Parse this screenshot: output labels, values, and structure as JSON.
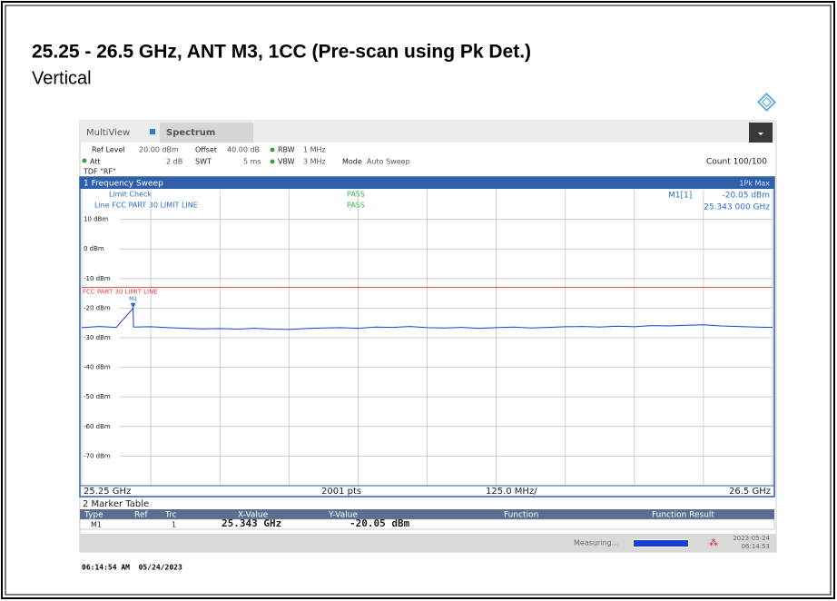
{
  "header": {
    "title": "25.25 - 26.5 GHz, ANT M3, 1CC (Pre-scan using Pk Det.)",
    "subtitle": "Vertical"
  },
  "analyzer": {
    "tabs": [
      "MultiView",
      "Spectrum"
    ],
    "settings": {
      "ref_level_label": "Ref Level",
      "ref_level": "20.00 dBm",
      "offset_label": "Offset",
      "offset": "40.00 dB",
      "rbw_label": "RBW",
      "rbw": "1 MHz",
      "att_label": "Att",
      "att": "2 dB",
      "swt_label": "SWT",
      "swt": "5 ms",
      "vbw_label": "VBW",
      "vbw": "3 MHz",
      "mode_label": "Mode",
      "mode": "Auto Sweep",
      "count": "Count 100/100",
      "tdf": "TDF \"RF\""
    },
    "window_title": "1 Frequency Sweep",
    "trace_label": "1Pk Max",
    "limit_check": "Limit Check",
    "limit_check_result": "PASS",
    "limit_line_label": "Line FCC PART 30 LIMIT LINE",
    "limit_line_result": "PASS"
  },
  "chart_data": {
    "type": "line",
    "xlim": [
      25.25,
      26.5
    ],
    "xlim_labels": [
      "25.25 GHz",
      "26.5 GHz"
    ],
    "xticks": [
      25.25,
      25.375,
      25.5,
      25.625,
      25.75,
      25.875,
      26.0,
      26.125,
      26.25,
      26.375,
      26.5
    ],
    "points_label": "2001 pts",
    "span_label": "125.0 MHz/",
    "ylim": [
      -80,
      20
    ],
    "yticks": [
      {
        "value": 10,
        "label": "10 dBm"
      },
      {
        "value": 0,
        "label": "0 dBm"
      },
      {
        "value": -10,
        "label": "-10 dBm"
      },
      {
        "value": -20,
        "label": "-20 dBm"
      },
      {
        "value": -30,
        "label": "-30 dBm"
      },
      {
        "value": -40,
        "label": "-40 dBm"
      },
      {
        "value": -50,
        "label": "-50 dBm"
      },
      {
        "value": -60,
        "label": "-60 dBm"
      },
      {
        "value": -70,
        "label": "-70 dBm"
      },
      -80
    ],
    "grid": true,
    "limit_line": {
      "name": "FCC PART 30 LIMIT LINE",
      "value": -13,
      "color": "#e04040"
    },
    "marker": {
      "name": "M1",
      "ref": "M1[1]",
      "x": 25.343,
      "y": -20.05,
      "x_label": "25.343 000 GHz",
      "y_label": "-20.05 dBm"
    },
    "series": [
      {
        "name": "1Pk Max",
        "color": "#1a3fd0",
        "x": [
          25.25,
          25.28125,
          25.3125,
          25.343,
          25.34375,
          25.375,
          25.40625,
          25.4375,
          25.46875,
          25.5,
          25.53125,
          25.5625,
          25.59375,
          25.625,
          25.65625,
          25.6875,
          25.71875,
          25.75,
          25.78125,
          25.8125,
          25.84375,
          25.875,
          25.90625,
          25.9375,
          25.96875,
          26.0,
          26.03125,
          26.0625,
          26.09375,
          26.125,
          26.15625,
          26.1875,
          26.21875,
          26.25,
          26.28125,
          26.3125,
          26.34375,
          26.375,
          26.40625,
          26.4375,
          26.46875,
          26.5
        ],
        "values": [
          -26.6,
          -26.2,
          -26.5,
          -20.05,
          -26.4,
          -26.3,
          -26.6,
          -26.8,
          -27.0,
          -26.9,
          -27.1,
          -26.8,
          -27.1,
          -27.2,
          -26.9,
          -26.7,
          -26.6,
          -26.8,
          -26.4,
          -26.5,
          -26.2,
          -26.6,
          -26.7,
          -26.5,
          -26.8,
          -26.6,
          -26.4,
          -26.7,
          -26.5,
          -26.3,
          -26.2,
          -26.4,
          -26.1,
          -26.3,
          -25.9,
          -26.0,
          -25.8,
          -25.6,
          -26.0,
          -26.2,
          -26.4,
          -26.5
        ]
      }
    ]
  },
  "marker_table": {
    "title": "2 Marker Table",
    "headers": [
      "Type",
      "Ref",
      "Trc",
      "X-Value",
      "Y-Value",
      "Function",
      "Function Result"
    ],
    "row": {
      "type": "M1",
      "trc": "1",
      "x": "25.343 GHz",
      "y": "-20.05 dBm"
    }
  },
  "status": {
    "state": "Measuring...",
    "date": "2023-05-24",
    "time": "06:14:53"
  },
  "timestamp": "06:14:54 AM  05/24/2023"
}
